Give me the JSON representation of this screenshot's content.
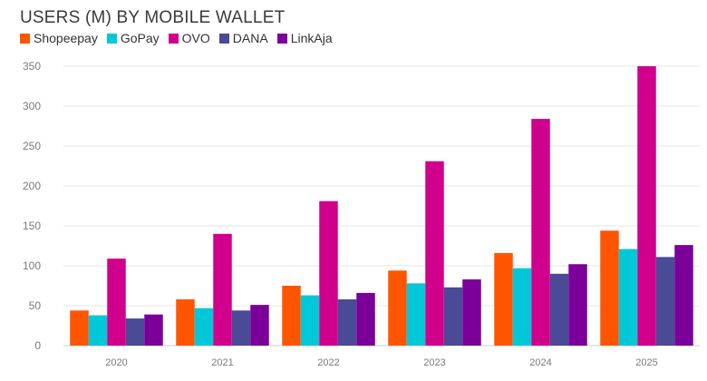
{
  "chart_data": {
    "type": "bar",
    "title": "USERS (M) BY MOBILE WALLET",
    "categories": [
      "2020",
      "2021",
      "2022",
      "2023",
      "2024",
      "2025"
    ],
    "ylim": [
      0,
      350
    ],
    "yticks": [
      0,
      50,
      100,
      150,
      200,
      250,
      300,
      350
    ],
    "grid": true,
    "legend_position": "top-left",
    "series": [
      {
        "name": "Shopeepay",
        "color": "#ff5500",
        "values": [
          44,
          58,
          75,
          94,
          116,
          144
        ]
      },
      {
        "name": "GoPay",
        "color": "#00c8d8",
        "values": [
          38,
          47,
          63,
          78,
          97,
          121
        ]
      },
      {
        "name": "OVO",
        "color": "#d0008c",
        "values": [
          109,
          140,
          181,
          231,
          284,
          350
        ]
      },
      {
        "name": "DANA",
        "color": "#4a4a96",
        "values": [
          34,
          44,
          58,
          73,
          90,
          111
        ]
      },
      {
        "name": "LinkAja",
        "color": "#7a0099",
        "values": [
          39,
          51,
          66,
          83,
          102,
          126
        ]
      }
    ]
  }
}
